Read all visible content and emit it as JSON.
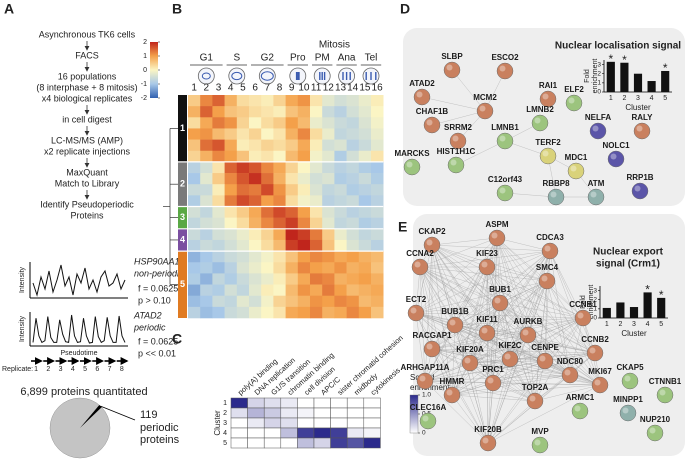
{
  "panel_a": {
    "label": "A",
    "steps": [
      [
        "Asynchronous TK6 cells"
      ],
      [
        "FACS"
      ],
      [
        "16 populations",
        "(8 interphase + 8 mitosis)",
        "x4 biological replicates"
      ],
      [
        "in cell digest"
      ],
      [
        "LC-MS/MS (AMP)",
        "x2 replicate injections"
      ],
      [
        "MaxQuant",
        "Match to Library"
      ],
      [
        "Identify Pseudoperiodic",
        "Proteins"
      ]
    ],
    "examples": [
      {
        "gene": "HSP90AA1",
        "status": "non-periodic",
        "f": "f = 0.0625",
        "p": "p > 0.10",
        "trace": [
          0.5,
          0.3,
          0.6,
          0.4,
          0.7,
          0.35,
          0.55,
          0.8,
          0.45,
          0.6,
          0.3,
          0.65,
          0.5,
          0.75,
          0.4,
          0.55,
          0.35,
          0.6,
          0.7,
          0.45,
          0.5,
          0.65,
          0.4,
          0.55
        ]
      },
      {
        "gene": "ATAD2",
        "status": "periodic",
        "f": "f = 0.0625",
        "p": "p << 0.01",
        "trace": [
          0.1,
          0.85,
          0.3,
          0.1,
          0.15,
          0.9,
          0.25,
          0.1,
          0.1,
          0.8,
          0.35,
          0.12,
          0.1,
          0.95,
          0.3,
          0.1,
          0.12,
          0.85,
          0.3,
          0.08,
          0.1,
          0.9,
          0.28,
          0.1,
          0.15,
          0.88,
          0.3,
          0.1,
          0.1,
          0.92,
          0.3,
          0.1
        ]
      }
    ],
    "y_label": "Intensity",
    "x_label": "Pseudotime",
    "replicate_label": "Replicate:",
    "replicates": [
      1,
      2,
      3,
      4,
      5,
      6,
      7,
      8
    ],
    "pie": {
      "type": "pie",
      "total": {
        "value": 6899,
        "label": "6,899"
      },
      "total_caption": "proteins quantitated",
      "slice": 119,
      "slice_caption": [
        "periodic",
        "proteins"
      ],
      "colors": [
        "#c4c4c4",
        "#000000"
      ]
    }
  },
  "panel_b": {
    "label": "B",
    "type": "heatmap",
    "group_label": "Mitosis",
    "phases": [
      "G1",
      "S",
      "G2",
      "Pro",
      "PM",
      "Ana",
      "Tel"
    ],
    "columns": [
      1,
      2,
      3,
      4,
      5,
      6,
      7,
      8,
      9,
      10,
      11,
      12,
      13,
      14,
      15,
      16
    ],
    "zlim": [
      -2,
      2
    ],
    "zticks": [
      2,
      1,
      0,
      -1,
      -2
    ],
    "clusters": [
      {
        "label": "1",
        "color": "#111111",
        "rows": [
          [
            0.5,
            1.2,
            1.5,
            0.8,
            0.3,
            0.2,
            0.1,
            0.4,
            0.9,
            1.1,
            0.2,
            -0.3,
            -0.5,
            -0.4,
            -0.2,
            0.1
          ],
          [
            0.8,
            1.5,
            1.0,
            0.6,
            0.5,
            0.3,
            0.2,
            0.1,
            0.6,
            0.8,
            0.0,
            -0.6,
            -0.8,
            -0.5,
            -0.3,
            0.0
          ],
          [
            0.3,
            0.9,
            1.3,
            1.1,
            0.4,
            0.0,
            0.3,
            0.5,
            1.0,
            0.7,
            -0.2,
            -0.4,
            -0.6,
            -0.7,
            -0.4,
            -0.1
          ],
          [
            1.0,
            1.1,
            0.7,
            0.5,
            0.2,
            0.4,
            0.0,
            0.2,
            0.8,
            1.2,
            0.3,
            -0.2,
            -0.7,
            -0.6,
            -0.5,
            -0.2
          ],
          [
            0.6,
            1.4,
            1.6,
            0.9,
            0.1,
            0.2,
            0.4,
            0.3,
            0.5,
            0.9,
            0.1,
            -0.5,
            -0.4,
            -0.8,
            -0.6,
            -0.3
          ],
          [
            0.4,
            0.8,
            1.2,
            1.0,
            0.6,
            0.1,
            0.2,
            0.0,
            0.7,
            1.0,
            -0.1,
            -0.3,
            -0.9,
            -0.5,
            -0.2,
            0.2
          ]
        ]
      },
      {
        "label": "2",
        "color": "#7a7a7a",
        "rows": [
          [
            -0.8,
            -0.5,
            0.2,
            1.5,
            1.8,
            1.6,
            1.2,
            0.9,
            0.4,
            0.0,
            -0.3,
            -0.6,
            -0.8,
            -0.7,
            -0.9,
            -1.0
          ],
          [
            -1.0,
            -0.3,
            0.5,
            1.2,
            1.6,
            1.9,
            1.4,
            0.8,
            0.2,
            -0.2,
            -0.5,
            -0.4,
            -0.9,
            -0.8,
            -0.6,
            -0.9
          ],
          [
            -0.6,
            -0.6,
            0.1,
            1.0,
            1.4,
            1.3,
            1.7,
            1.1,
            0.5,
            0.1,
            -0.4,
            -0.7,
            -0.6,
            -0.9,
            -0.8,
            -0.7
          ],
          [
            -0.9,
            -0.4,
            0.3,
            1.3,
            1.7,
            1.5,
            1.0,
            1.2,
            0.3,
            -0.1,
            -0.2,
            -0.8,
            -0.7,
            -0.6,
            -1.0,
            -0.8
          ]
        ]
      },
      {
        "label": "3",
        "color": "#5aa845",
        "rows": [
          [
            -0.5,
            -0.7,
            -0.3,
            0.2,
            0.5,
            0.9,
            1.4,
            1.7,
            1.5,
            1.0,
            0.2,
            -0.4,
            -0.6,
            -0.8,
            -0.7,
            -0.6
          ],
          [
            -0.7,
            -0.5,
            -0.4,
            0.0,
            0.3,
            0.8,
            1.2,
            1.5,
            1.8,
            1.2,
            0.4,
            -0.3,
            -0.7,
            -0.6,
            -0.9,
            -0.8
          ]
        ]
      },
      {
        "label": "4",
        "color": "#7b4fa0",
        "rows": [
          [
            -0.6,
            -0.8,
            -0.5,
            -0.4,
            -0.2,
            0.1,
            0.4,
            0.9,
            2.0,
            1.8,
            1.3,
            0.5,
            -0.2,
            -0.5,
            -0.7,
            -0.6
          ],
          [
            -0.8,
            -0.6,
            -0.7,
            -0.5,
            -0.3,
            0.0,
            0.3,
            0.7,
            1.8,
            2.0,
            1.5,
            0.6,
            0.0,
            -0.4,
            -0.6,
            -0.8
          ]
        ]
      },
      {
        "label": "5",
        "color": "#e07b22",
        "rows": [
          [
            -1.2,
            -1.0,
            -0.8,
            -0.6,
            -0.5,
            -0.3,
            -0.1,
            0.2,
            0.6,
            1.0,
            1.2,
            1.1,
            0.9,
            1.0,
            0.8,
            0.7
          ],
          [
            -1.0,
            -0.9,
            -1.1,
            -0.8,
            -0.4,
            -0.2,
            0.0,
            0.3,
            0.8,
            1.2,
            1.0,
            0.9,
            1.1,
            0.8,
            0.9,
            0.6
          ],
          [
            -0.9,
            -1.2,
            -0.7,
            -0.9,
            -0.6,
            -0.4,
            -0.2,
            0.1,
            0.5,
            0.9,
            1.3,
            1.2,
            0.8,
            0.9,
            1.0,
            0.8
          ],
          [
            -1.3,
            -0.8,
            -0.9,
            -0.5,
            -0.7,
            -0.3,
            0.1,
            0.0,
            0.7,
            1.1,
            0.9,
            1.3,
            1.0,
            0.7,
            0.8,
            0.9
          ],
          [
            -1.1,
            -1.0,
            -0.6,
            -0.7,
            -0.3,
            -0.5,
            -0.1,
            0.4,
            0.6,
            0.8,
            1.1,
            1.0,
            1.2,
            1.1,
            0.7,
            0.8
          ],
          [
            -0.8,
            -1.1,
            -1.0,
            -0.6,
            -0.5,
            -0.2,
            0.0,
            0.2,
            0.9,
            1.0,
            1.2,
            0.8,
            0.9,
            1.2,
            1.0,
            0.6
          ]
        ]
      }
    ]
  },
  "panel_c": {
    "label": "C",
    "type": "heatmap",
    "categories": [
      "poly(A) binding",
      "DNA replication",
      "G1/S transition",
      "chromatin binding",
      "cell division",
      "APC/C",
      "sister chromatid cohesion",
      "midbody",
      "cytokinesis"
    ],
    "y_label": "Cluster",
    "clusters": [
      1,
      2,
      3,
      4,
      5
    ],
    "values": [
      [
        1.0,
        0.2,
        0.15,
        0.1,
        0,
        0,
        0,
        0,
        0
      ],
      [
        0.15,
        0.35,
        0.25,
        0.1,
        0.05,
        0,
        0,
        0,
        0
      ],
      [
        0,
        0.1,
        0.2,
        0.15,
        0,
        0,
        0,
        0,
        0
      ],
      [
        0,
        0,
        0,
        0.3,
        0.9,
        1.0,
        0.9,
        0.1,
        0.05
      ],
      [
        0,
        0,
        0,
        0,
        0.3,
        0.2,
        0.9,
        0.8,
        1.0
      ]
    ],
    "colorbar_label": [
      "Scaled",
      "enrichment"
    ],
    "zlim": [
      0,
      1
    ],
    "zticks": [
      {
        "value": 1,
        "label": "1.0"
      },
      {
        "value": 0.5,
        "label": "0.5"
      },
      0
    ],
    "color": "#2b2a8c"
  },
  "panel_d": {
    "label": "D",
    "nodes": [
      {
        "label": "SLBP",
        "color": "#c9805f"
      },
      {
        "label": "ESCO2",
        "color": "#c9805f"
      },
      {
        "label": "ATAD2",
        "color": "#c9805f"
      },
      {
        "label": "RAI1",
        "color": "#c9805f"
      },
      {
        "label": "MCM2",
        "color": "#c9805f"
      },
      {
        "label": "CHAF1B",
        "color": "#c9805f"
      },
      {
        "label": "LMNB2",
        "color": "#9cc47e"
      },
      {
        "label": "ELF2",
        "color": "#9cc47e"
      },
      {
        "label": "SRRM2",
        "color": "#c9805f"
      },
      {
        "label": "LMNB1",
        "color": "#9cc47e"
      },
      {
        "label": "NELFA",
        "color": "#5b55a8"
      },
      {
        "label": "RALY",
        "color": "#c9805f"
      },
      {
        "label": "MARCKS",
        "color": "#9cc47e"
      },
      {
        "label": "HIST1H1C",
        "color": "#9cc47e"
      },
      {
        "label": "TERF2",
        "color": "#d9d27a"
      },
      {
        "label": "MDC1",
        "color": "#d9d27a"
      },
      {
        "label": "NOLC1",
        "color": "#5b55a8"
      },
      {
        "label": "C12orf43",
        "color": "#9cc47e"
      },
      {
        "label": "RBBP8",
        "color": "#8fb0ab"
      },
      {
        "label": "ATM",
        "color": "#8fb0ab"
      },
      {
        "label": "RRP1B",
        "color": "#5b55a8"
      }
    ],
    "chart": {
      "type": "bar",
      "title": [
        "Nuclear localisation signal"
      ],
      "y_label": [
        "Fold",
        "enrichment"
      ],
      "x_label": "Cluster",
      "categories": [
        1,
        2,
        3,
        4,
        5
      ],
      "values": [
        3.3,
        3.2,
        2.0,
        1.2,
        2.3
      ],
      "markers": [
        "*",
        "*",
        null,
        null,
        "*"
      ],
      "ylim": [
        0,
        3.5
      ],
      "yticks": [
        0,
        1,
        2,
        3
      ],
      "color": "#111111"
    }
  },
  "panel_e": {
    "label": "E",
    "nodes": [
      {
        "label": "CKAP2",
        "color": "#c9805f"
      },
      {
        "label": "ASPM",
        "color": "#c9805f"
      },
      {
        "label": "CDCA3",
        "color": "#c9805f"
      },
      {
        "label": "CCNA2",
        "color": "#c9805f"
      },
      {
        "label": "KIF23",
        "color": "#c9805f"
      },
      {
        "label": "SMC4",
        "color": "#c9805f"
      },
      {
        "label": "BUB1",
        "color": "#c9805f"
      },
      {
        "label": "ECT2",
        "color": "#c9805f"
      },
      {
        "label": "BUB1B",
        "color": "#c9805f"
      },
      {
        "label": "KIF11",
        "color": "#c9805f"
      },
      {
        "label": "AURKB",
        "color": "#c9805f"
      },
      {
        "label": "CCNB1",
        "color": "#c9805f"
      },
      {
        "label": "RACGAP1",
        "color": "#c9805f"
      },
      {
        "label": "KIF2C",
        "color": "#c9805f"
      },
      {
        "label": "CCNB2",
        "color": "#c9805f"
      },
      {
        "label": "KIF20A",
        "color": "#c9805f"
      },
      {
        "label": "CENPE",
        "color": "#c9805f"
      },
      {
        "label": "NDC80",
        "color": "#c9805f"
      },
      {
        "label": "MKI67",
        "color": "#c9805f"
      },
      {
        "label": "CKAP5",
        "color": "#9cc47e"
      },
      {
        "label": "CTNNB1",
        "color": "#9cc47e"
      },
      {
        "label": "MINPP1",
        "color": "#8fb0ab"
      },
      {
        "label": "NUP210",
        "color": "#9cc47e"
      },
      {
        "label": "ARHGAP11A",
        "color": "#c9805f"
      },
      {
        "label": "HMMR",
        "color": "#c9805f"
      },
      {
        "label": "PRC1",
        "color": "#c9805f"
      },
      {
        "label": "TOP2A",
        "color": "#c9805f"
      },
      {
        "label": "ARMC1",
        "color": "#9cc47e"
      },
      {
        "label": "CLEC16A",
        "color": "#9cc47e"
      },
      {
        "label": "KIF20B",
        "color": "#c9805f"
      },
      {
        "label": "MVP",
        "color": "#9cc47e"
      }
    ],
    "chart": {
      "type": "bar",
      "title": [
        "Nuclear export",
        "signal (Crm1)"
      ],
      "y_label": [
        "Fold",
        "enrichment"
      ],
      "x_label": "Cluster",
      "categories": [
        1,
        2,
        3,
        4,
        5
      ],
      "values": [
        1.1,
        1.7,
        1.2,
        2.8,
        2.2
      ],
      "markers": [
        null,
        null,
        null,
        "*",
        "*"
      ],
      "ylim": [
        0,
        3.5
      ],
      "yticks": [
        0,
        1,
        2,
        3
      ],
      "color": "#111111"
    }
  }
}
